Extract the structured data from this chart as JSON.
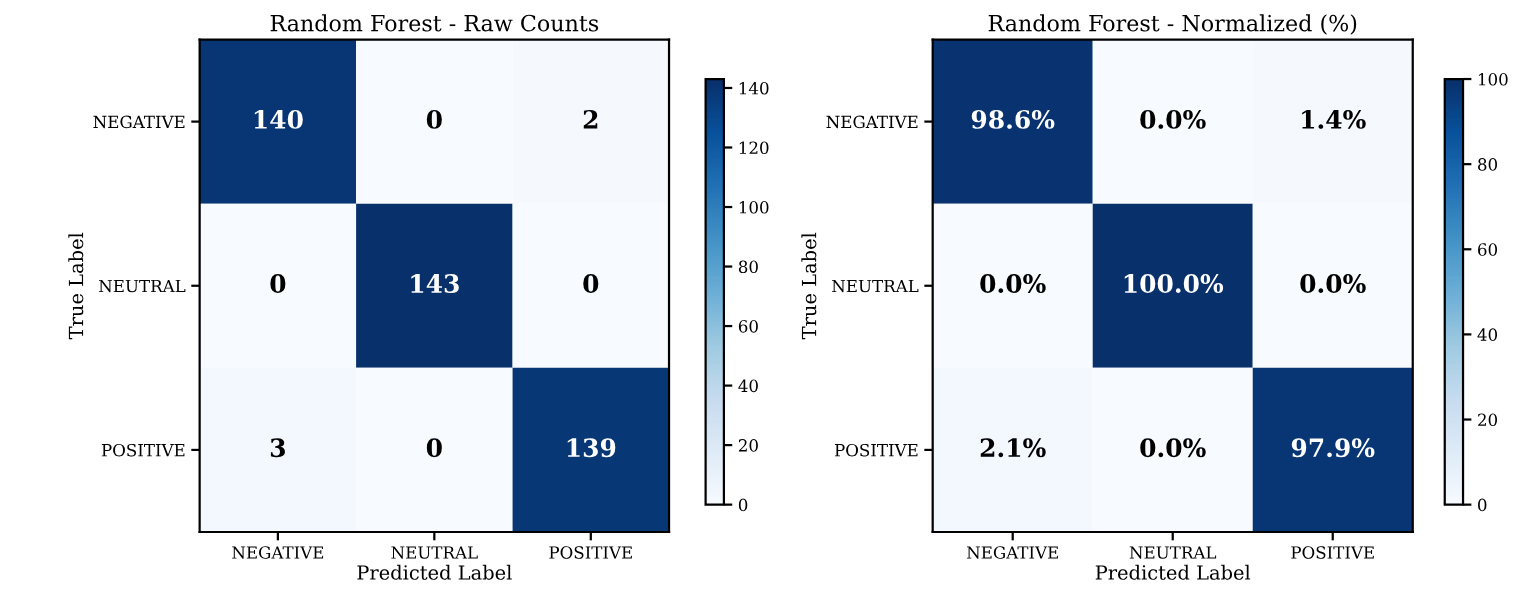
{
  "chart_data": [
    {
      "type": "heatmap",
      "title": "Random Forest - Raw Counts",
      "xlabel": "Predicted Label",
      "ylabel": "True Label",
      "categories": [
        "NEGATIVE",
        "NEUTRAL",
        "POSITIVE"
      ],
      "y_categories": [
        "NEGATIVE",
        "NEUTRAL",
        "POSITIVE"
      ],
      "cells": [
        [
          140,
          0,
          2
        ],
        [
          0,
          143,
          0
        ],
        [
          3,
          0,
          139
        ]
      ],
      "data_labels": true,
      "clim": [
        0,
        143
      ],
      "cticks": [
        0,
        20,
        40,
        60,
        80,
        100,
        120,
        140
      ]
    },
    {
      "type": "heatmap",
      "title": "Random Forest - Normalized (%)",
      "xlabel": "Predicted Label",
      "ylabel": "True Label",
      "categories": [
        "NEGATIVE",
        "NEUTRAL",
        "POSITIVE"
      ],
      "y_categories": [
        "NEGATIVE",
        "NEUTRAL",
        "POSITIVE"
      ],
      "cells": [
        [
          98.6,
          0.0,
          1.4
        ],
        [
          0.0,
          100.0,
          0.0
        ],
        [
          2.1,
          0.0,
          97.9
        ]
      ],
      "cell_labels": [
        [
          "98.6%",
          "0.0%",
          "1.4%"
        ],
        [
          "0.0%",
          "100.0%",
          "0.0%"
        ],
        [
          "2.1%",
          "0.0%",
          "97.9%"
        ]
      ],
      "clim": [
        0,
        100
      ],
      "cticks": [
        0,
        20,
        40,
        60,
        80,
        100
      ]
    }
  ]
}
